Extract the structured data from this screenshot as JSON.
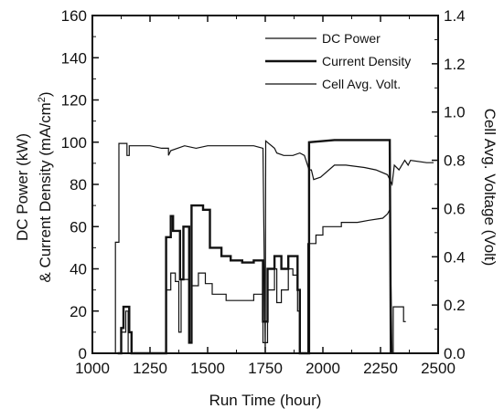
{
  "chart_data": {
    "type": "line",
    "xlabel": "Run Time (hour)",
    "ylabel_left_line1": "DC Power (kW)",
    "ylabel_left_line2_prefix": "& Current Density (mA/cm",
    "ylabel_left_line2_sup": "2",
    "ylabel_left_line2_suffix": ")",
    "ylabel_right": "Cell Avg. Voltage (Volt)",
    "xlim": [
      1000,
      2500
    ],
    "ylim_left": [
      0,
      160
    ],
    "ylim_right": [
      0.0,
      1.4
    ],
    "x_ticks": [
      1000,
      1250,
      1500,
      1750,
      2000,
      2250,
      2500
    ],
    "y_left_ticks": [
      0,
      20,
      40,
      60,
      80,
      100,
      120,
      140,
      160
    ],
    "y_right_ticks": [
      "0.0",
      "0.2",
      "0.4",
      "0.6",
      "0.8",
      "1.0",
      "1.2",
      "1.4"
    ],
    "legend_position": "top-right",
    "series": [
      {
        "name": "DC Power",
        "axis": "left",
        "points": [
          [
            1100,
            0
          ],
          [
            1125,
            0
          ],
          [
            1125,
            10
          ],
          [
            1145,
            10
          ],
          [
            1145,
            20
          ],
          [
            1155,
            20
          ],
          [
            1155,
            0
          ],
          [
            1320,
            0
          ],
          [
            1320,
            30
          ],
          [
            1340,
            30
          ],
          [
            1340,
            38
          ],
          [
            1360,
            38
          ],
          [
            1360,
            34
          ],
          [
            1375,
            34
          ],
          [
            1375,
            10
          ],
          [
            1385,
            10
          ],
          [
            1385,
            35
          ],
          [
            1420,
            35
          ],
          [
            1420,
            5
          ],
          [
            1432,
            5
          ],
          [
            1432,
            32
          ],
          [
            1460,
            32
          ],
          [
            1460,
            38
          ],
          [
            1490,
            38
          ],
          [
            1490,
            33
          ],
          [
            1520,
            33
          ],
          [
            1520,
            28
          ],
          [
            1580,
            28
          ],
          [
            1580,
            25
          ],
          [
            1650,
            25
          ],
          [
            1650,
            25
          ],
          [
            1700,
            25
          ],
          [
            1700,
            28
          ],
          [
            1740,
            28
          ],
          [
            1740,
            5
          ],
          [
            1760,
            5
          ],
          [
            1760,
            30
          ],
          [
            1790,
            30
          ],
          [
            1790,
            40
          ],
          [
            1800,
            40
          ],
          [
            1800,
            24
          ],
          [
            1820,
            24
          ],
          [
            1820,
            30
          ],
          [
            1850,
            30
          ],
          [
            1850,
            40
          ],
          [
            1870,
            40
          ],
          [
            1870,
            37
          ],
          [
            1890,
            37
          ],
          [
            1890,
            20
          ],
          [
            1900,
            20
          ],
          [
            1900,
            0
          ],
          [
            1935,
            0
          ],
          [
            1935,
            52
          ],
          [
            1970,
            52
          ],
          [
            1970,
            56
          ],
          [
            2000,
            56
          ],
          [
            2000,
            60
          ],
          [
            2080,
            60
          ],
          [
            2080,
            62
          ],
          [
            2150,
            62
          ],
          [
            2200,
            63
          ],
          [
            2260,
            64
          ],
          [
            2280,
            66
          ],
          [
            2290,
            68
          ],
          [
            2300,
            0
          ],
          [
            2305,
            0
          ],
          [
            2305,
            22
          ],
          [
            2350,
            22
          ],
          [
            2350,
            15
          ],
          [
            2360,
            15
          ]
        ]
      },
      {
        "name": "Current Density",
        "axis": "left",
        "points": [
          [
            1110,
            0
          ],
          [
            1125,
            0
          ],
          [
            1125,
            12
          ],
          [
            1135,
            12
          ],
          [
            1135,
            22
          ],
          [
            1160,
            22
          ],
          [
            1160,
            10
          ],
          [
            1170,
            10
          ],
          [
            1170,
            0
          ],
          [
            1320,
            0
          ],
          [
            1320,
            55
          ],
          [
            1340,
            55
          ],
          [
            1340,
            65
          ],
          [
            1350,
            65
          ],
          [
            1350,
            58
          ],
          [
            1380,
            58
          ],
          [
            1380,
            35
          ],
          [
            1395,
            35
          ],
          [
            1395,
            60
          ],
          [
            1420,
            60
          ],
          [
            1420,
            5
          ],
          [
            1430,
            5
          ],
          [
            1430,
            70
          ],
          [
            1480,
            70
          ],
          [
            1480,
            68
          ],
          [
            1510,
            68
          ],
          [
            1510,
            50
          ],
          [
            1560,
            50
          ],
          [
            1560,
            46
          ],
          [
            1600,
            46
          ],
          [
            1600,
            44
          ],
          [
            1650,
            44
          ],
          [
            1650,
            43
          ],
          [
            1700,
            43
          ],
          [
            1700,
            44
          ],
          [
            1740,
            44
          ],
          [
            1740,
            15
          ],
          [
            1760,
            15
          ],
          [
            1760,
            40
          ],
          [
            1790,
            40
          ],
          [
            1790,
            46
          ],
          [
            1820,
            46
          ],
          [
            1820,
            40
          ],
          [
            1850,
            40
          ],
          [
            1850,
            46
          ],
          [
            1890,
            46
          ],
          [
            1890,
            30
          ],
          [
            1900,
            30
          ],
          [
            1900,
            0
          ],
          [
            1940,
            0
          ],
          [
            1940,
            100
          ],
          [
            2050,
            101
          ],
          [
            2150,
            101
          ],
          [
            2290,
            101
          ],
          [
            2295,
            0
          ]
        ]
      },
      {
        "name": "Cell Avg. Volt.",
        "axis": "right",
        "points": [
          [
            1090,
            0.0
          ],
          [
            1100,
            0.0
          ],
          [
            1100,
            0.46
          ],
          [
            1115,
            0.46
          ],
          [
            1115,
            0.87
          ],
          [
            1150,
            0.87
          ],
          [
            1150,
            0.82
          ],
          [
            1160,
            0.82
          ],
          [
            1160,
            0.86
          ],
          [
            1200,
            0.86
          ],
          [
            1250,
            0.86
          ],
          [
            1300,
            0.85
          ],
          [
            1330,
            0.85
          ],
          [
            1330,
            0.82
          ],
          [
            1340,
            0.84
          ],
          [
            1400,
            0.86
          ],
          [
            1450,
            0.85
          ],
          [
            1500,
            0.86
          ],
          [
            1600,
            0.86
          ],
          [
            1700,
            0.86
          ],
          [
            1740,
            0.85
          ],
          [
            1750,
            0.0
          ],
          [
            1752,
            0.88
          ],
          [
            1790,
            0.85
          ],
          [
            1800,
            0.83
          ],
          [
            1830,
            0.82
          ],
          [
            1870,
            0.82
          ],
          [
            1900,
            0.83
          ],
          [
            1920,
            0.82
          ],
          [
            1940,
            0.76
          ],
          [
            1950,
            0.76
          ],
          [
            1960,
            0.72
          ],
          [
            1990,
            0.73
          ],
          [
            2050,
            0.78
          ],
          [
            2100,
            0.78
          ],
          [
            2180,
            0.77
          ],
          [
            2230,
            0.76
          ],
          [
            2280,
            0.74
          ],
          [
            2300,
            0.7
          ],
          [
            2310,
            0.78
          ],
          [
            2330,
            0.76
          ],
          [
            2355,
            0.8
          ],
          [
            2370,
            0.78
          ],
          [
            2380,
            0.8
          ],
          [
            2450,
            0.79
          ],
          [
            2480,
            0.79
          ]
        ]
      }
    ]
  }
}
